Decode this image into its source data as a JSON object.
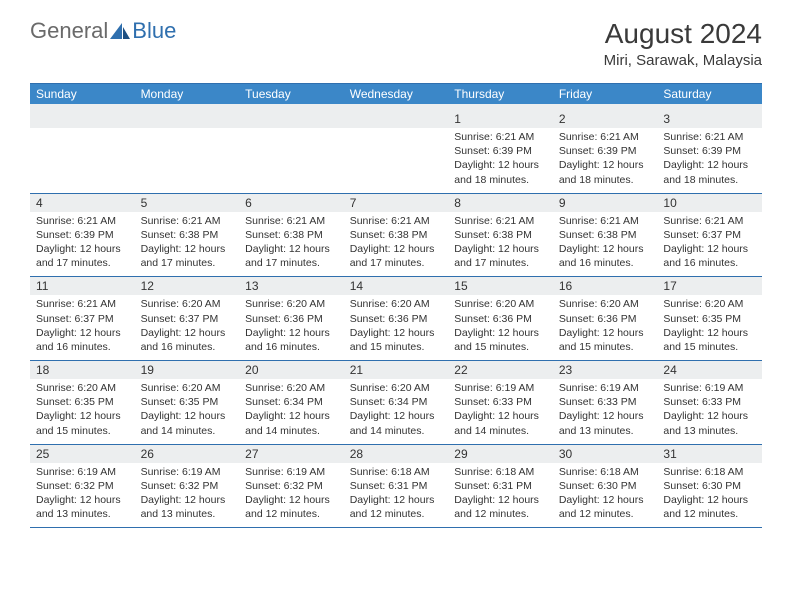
{
  "logo": {
    "general": "General",
    "blue": "Blue"
  },
  "title": "August 2024",
  "location": "Miri, Sarawak, Malaysia",
  "colors": {
    "header_bg": "#3b87c8",
    "header_text": "#ffffff",
    "daynum_bg": "#eceeef",
    "border": "#2f6fae",
    "text": "#333333",
    "logo_gray": "#6a6a6a",
    "logo_blue": "#2f6fae"
  },
  "typography": {
    "title_fontsize": 28,
    "location_fontsize": 15,
    "dayheader_fontsize": 12,
    "daynum_fontsize": 12,
    "body_fontsize": 10.5
  },
  "day_headers": [
    "Sunday",
    "Monday",
    "Tuesday",
    "Wednesday",
    "Thursday",
    "Friday",
    "Saturday"
  ],
  "weeks": [
    {
      "nums": [
        "",
        "",
        "",
        "",
        "1",
        "2",
        "3"
      ],
      "cells": [
        {},
        {},
        {},
        {},
        {
          "sunrise": "Sunrise: 6:21 AM",
          "sunset": "Sunset: 6:39 PM",
          "day1": "Daylight: 12 hours",
          "day2": "and 18 minutes."
        },
        {
          "sunrise": "Sunrise: 6:21 AM",
          "sunset": "Sunset: 6:39 PM",
          "day1": "Daylight: 12 hours",
          "day2": "and 18 minutes."
        },
        {
          "sunrise": "Sunrise: 6:21 AM",
          "sunset": "Sunset: 6:39 PM",
          "day1": "Daylight: 12 hours",
          "day2": "and 18 minutes."
        }
      ]
    },
    {
      "nums": [
        "4",
        "5",
        "6",
        "7",
        "8",
        "9",
        "10"
      ],
      "cells": [
        {
          "sunrise": "Sunrise: 6:21 AM",
          "sunset": "Sunset: 6:39 PM",
          "day1": "Daylight: 12 hours",
          "day2": "and 17 minutes."
        },
        {
          "sunrise": "Sunrise: 6:21 AM",
          "sunset": "Sunset: 6:38 PM",
          "day1": "Daylight: 12 hours",
          "day2": "and 17 minutes."
        },
        {
          "sunrise": "Sunrise: 6:21 AM",
          "sunset": "Sunset: 6:38 PM",
          "day1": "Daylight: 12 hours",
          "day2": "and 17 minutes."
        },
        {
          "sunrise": "Sunrise: 6:21 AM",
          "sunset": "Sunset: 6:38 PM",
          "day1": "Daylight: 12 hours",
          "day2": "and 17 minutes."
        },
        {
          "sunrise": "Sunrise: 6:21 AM",
          "sunset": "Sunset: 6:38 PM",
          "day1": "Daylight: 12 hours",
          "day2": "and 17 minutes."
        },
        {
          "sunrise": "Sunrise: 6:21 AM",
          "sunset": "Sunset: 6:38 PM",
          "day1": "Daylight: 12 hours",
          "day2": "and 16 minutes."
        },
        {
          "sunrise": "Sunrise: 6:21 AM",
          "sunset": "Sunset: 6:37 PM",
          "day1": "Daylight: 12 hours",
          "day2": "and 16 minutes."
        }
      ]
    },
    {
      "nums": [
        "11",
        "12",
        "13",
        "14",
        "15",
        "16",
        "17"
      ],
      "cells": [
        {
          "sunrise": "Sunrise: 6:21 AM",
          "sunset": "Sunset: 6:37 PM",
          "day1": "Daylight: 12 hours",
          "day2": "and 16 minutes."
        },
        {
          "sunrise": "Sunrise: 6:20 AM",
          "sunset": "Sunset: 6:37 PM",
          "day1": "Daylight: 12 hours",
          "day2": "and 16 minutes."
        },
        {
          "sunrise": "Sunrise: 6:20 AM",
          "sunset": "Sunset: 6:36 PM",
          "day1": "Daylight: 12 hours",
          "day2": "and 16 minutes."
        },
        {
          "sunrise": "Sunrise: 6:20 AM",
          "sunset": "Sunset: 6:36 PM",
          "day1": "Daylight: 12 hours",
          "day2": "and 15 minutes."
        },
        {
          "sunrise": "Sunrise: 6:20 AM",
          "sunset": "Sunset: 6:36 PM",
          "day1": "Daylight: 12 hours",
          "day2": "and 15 minutes."
        },
        {
          "sunrise": "Sunrise: 6:20 AM",
          "sunset": "Sunset: 6:36 PM",
          "day1": "Daylight: 12 hours",
          "day2": "and 15 minutes."
        },
        {
          "sunrise": "Sunrise: 6:20 AM",
          "sunset": "Sunset: 6:35 PM",
          "day1": "Daylight: 12 hours",
          "day2": "and 15 minutes."
        }
      ]
    },
    {
      "nums": [
        "18",
        "19",
        "20",
        "21",
        "22",
        "23",
        "24"
      ],
      "cells": [
        {
          "sunrise": "Sunrise: 6:20 AM",
          "sunset": "Sunset: 6:35 PM",
          "day1": "Daylight: 12 hours",
          "day2": "and 15 minutes."
        },
        {
          "sunrise": "Sunrise: 6:20 AM",
          "sunset": "Sunset: 6:35 PM",
          "day1": "Daylight: 12 hours",
          "day2": "and 14 minutes."
        },
        {
          "sunrise": "Sunrise: 6:20 AM",
          "sunset": "Sunset: 6:34 PM",
          "day1": "Daylight: 12 hours",
          "day2": "and 14 minutes."
        },
        {
          "sunrise": "Sunrise: 6:20 AM",
          "sunset": "Sunset: 6:34 PM",
          "day1": "Daylight: 12 hours",
          "day2": "and 14 minutes."
        },
        {
          "sunrise": "Sunrise: 6:19 AM",
          "sunset": "Sunset: 6:33 PM",
          "day1": "Daylight: 12 hours",
          "day2": "and 14 minutes."
        },
        {
          "sunrise": "Sunrise: 6:19 AM",
          "sunset": "Sunset: 6:33 PM",
          "day1": "Daylight: 12 hours",
          "day2": "and 13 minutes."
        },
        {
          "sunrise": "Sunrise: 6:19 AM",
          "sunset": "Sunset: 6:33 PM",
          "day1": "Daylight: 12 hours",
          "day2": "and 13 minutes."
        }
      ]
    },
    {
      "nums": [
        "25",
        "26",
        "27",
        "28",
        "29",
        "30",
        "31"
      ],
      "cells": [
        {
          "sunrise": "Sunrise: 6:19 AM",
          "sunset": "Sunset: 6:32 PM",
          "day1": "Daylight: 12 hours",
          "day2": "and 13 minutes."
        },
        {
          "sunrise": "Sunrise: 6:19 AM",
          "sunset": "Sunset: 6:32 PM",
          "day1": "Daylight: 12 hours",
          "day2": "and 13 minutes."
        },
        {
          "sunrise": "Sunrise: 6:19 AM",
          "sunset": "Sunset: 6:32 PM",
          "day1": "Daylight: 12 hours",
          "day2": "and 12 minutes."
        },
        {
          "sunrise": "Sunrise: 6:18 AM",
          "sunset": "Sunset: 6:31 PM",
          "day1": "Daylight: 12 hours",
          "day2": "and 12 minutes."
        },
        {
          "sunrise": "Sunrise: 6:18 AM",
          "sunset": "Sunset: 6:31 PM",
          "day1": "Daylight: 12 hours",
          "day2": "and 12 minutes."
        },
        {
          "sunrise": "Sunrise: 6:18 AM",
          "sunset": "Sunset: 6:30 PM",
          "day1": "Daylight: 12 hours",
          "day2": "and 12 minutes."
        },
        {
          "sunrise": "Sunrise: 6:18 AM",
          "sunset": "Sunset: 6:30 PM",
          "day1": "Daylight: 12 hours",
          "day2": "and 12 minutes."
        }
      ]
    }
  ]
}
